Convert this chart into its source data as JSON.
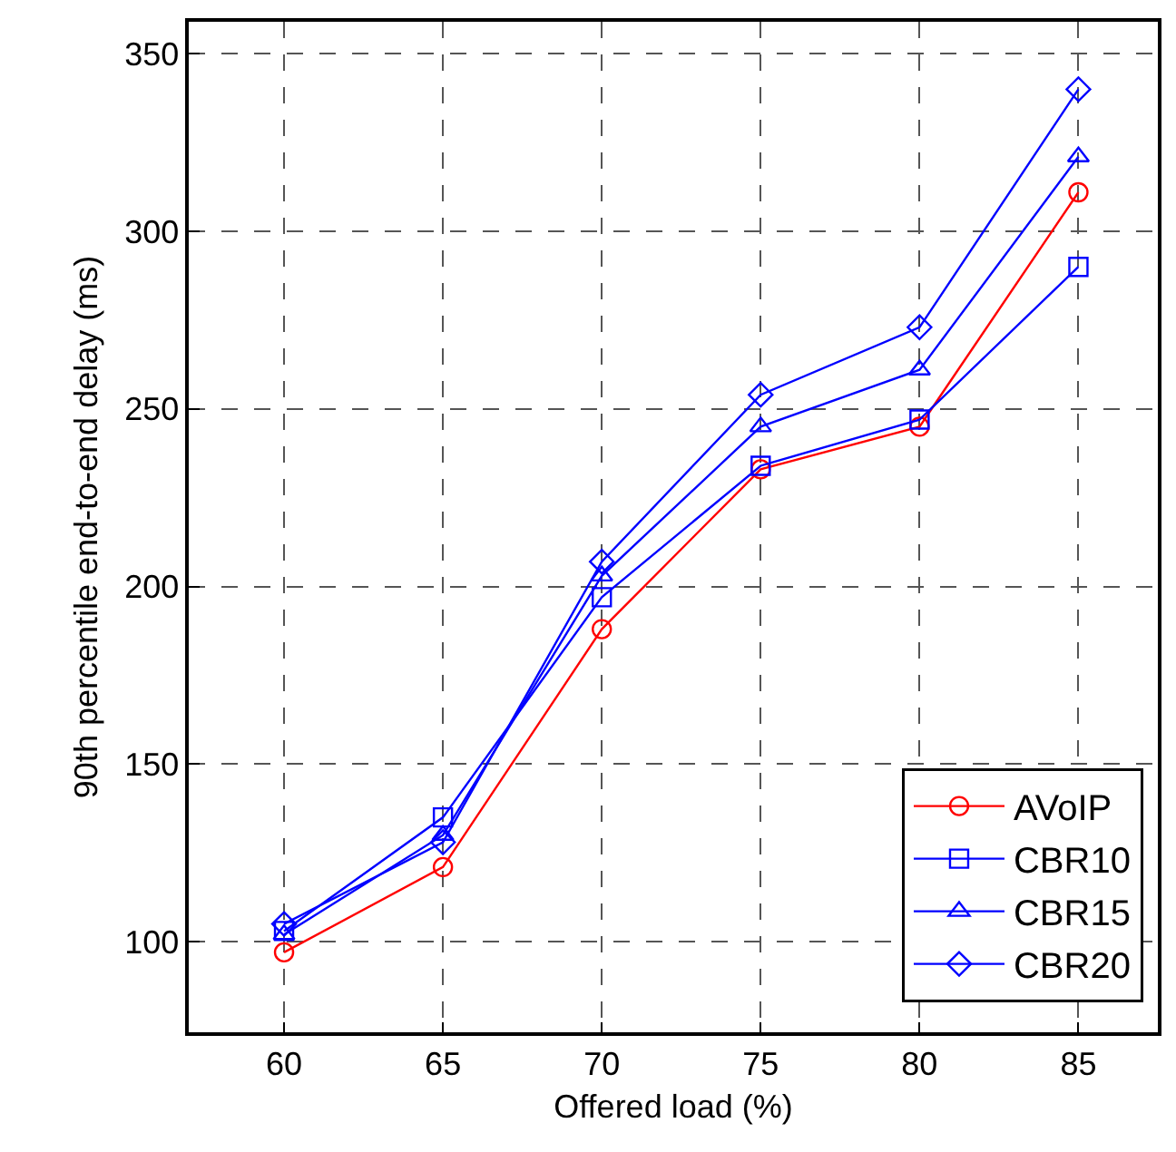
{
  "chart_data": {
    "type": "line",
    "xlabel": "Offered load (%)",
    "ylabel": "90th percentile end-to-end delay (ms)",
    "x": [
      60,
      65,
      70,
      75,
      80,
      85
    ],
    "series": [
      {
        "name": "AVoIP",
        "color": "#ff0000",
        "marker": "circle",
        "values": [
          97,
          121,
          188,
          233,
          245,
          311
        ]
      },
      {
        "name": "CBR10",
        "color": "#0000ff",
        "marker": "square",
        "values": [
          103,
          135,
          197,
          234,
          247,
          290
        ]
      },
      {
        "name": "CBR15",
        "color": "#0000ff",
        "marker": "triangle",
        "values": [
          102,
          130,
          203,
          245,
          261,
          321
        ]
      },
      {
        "name": "CBR20",
        "color": "#0000ff",
        "marker": "diamond",
        "values": [
          105,
          128,
          207,
          254,
          273,
          340
        ]
      }
    ],
    "xlim": [
      57,
      87.5
    ],
    "xticks": [
      60,
      65,
      70,
      75,
      80,
      85
    ],
    "ylim": [
      74.5,
      359
    ],
    "yticks": [
      100,
      150,
      200,
      250,
      300,
      350
    ],
    "grid": true,
    "legend": "bottom right",
    "line_style": "solid"
  }
}
